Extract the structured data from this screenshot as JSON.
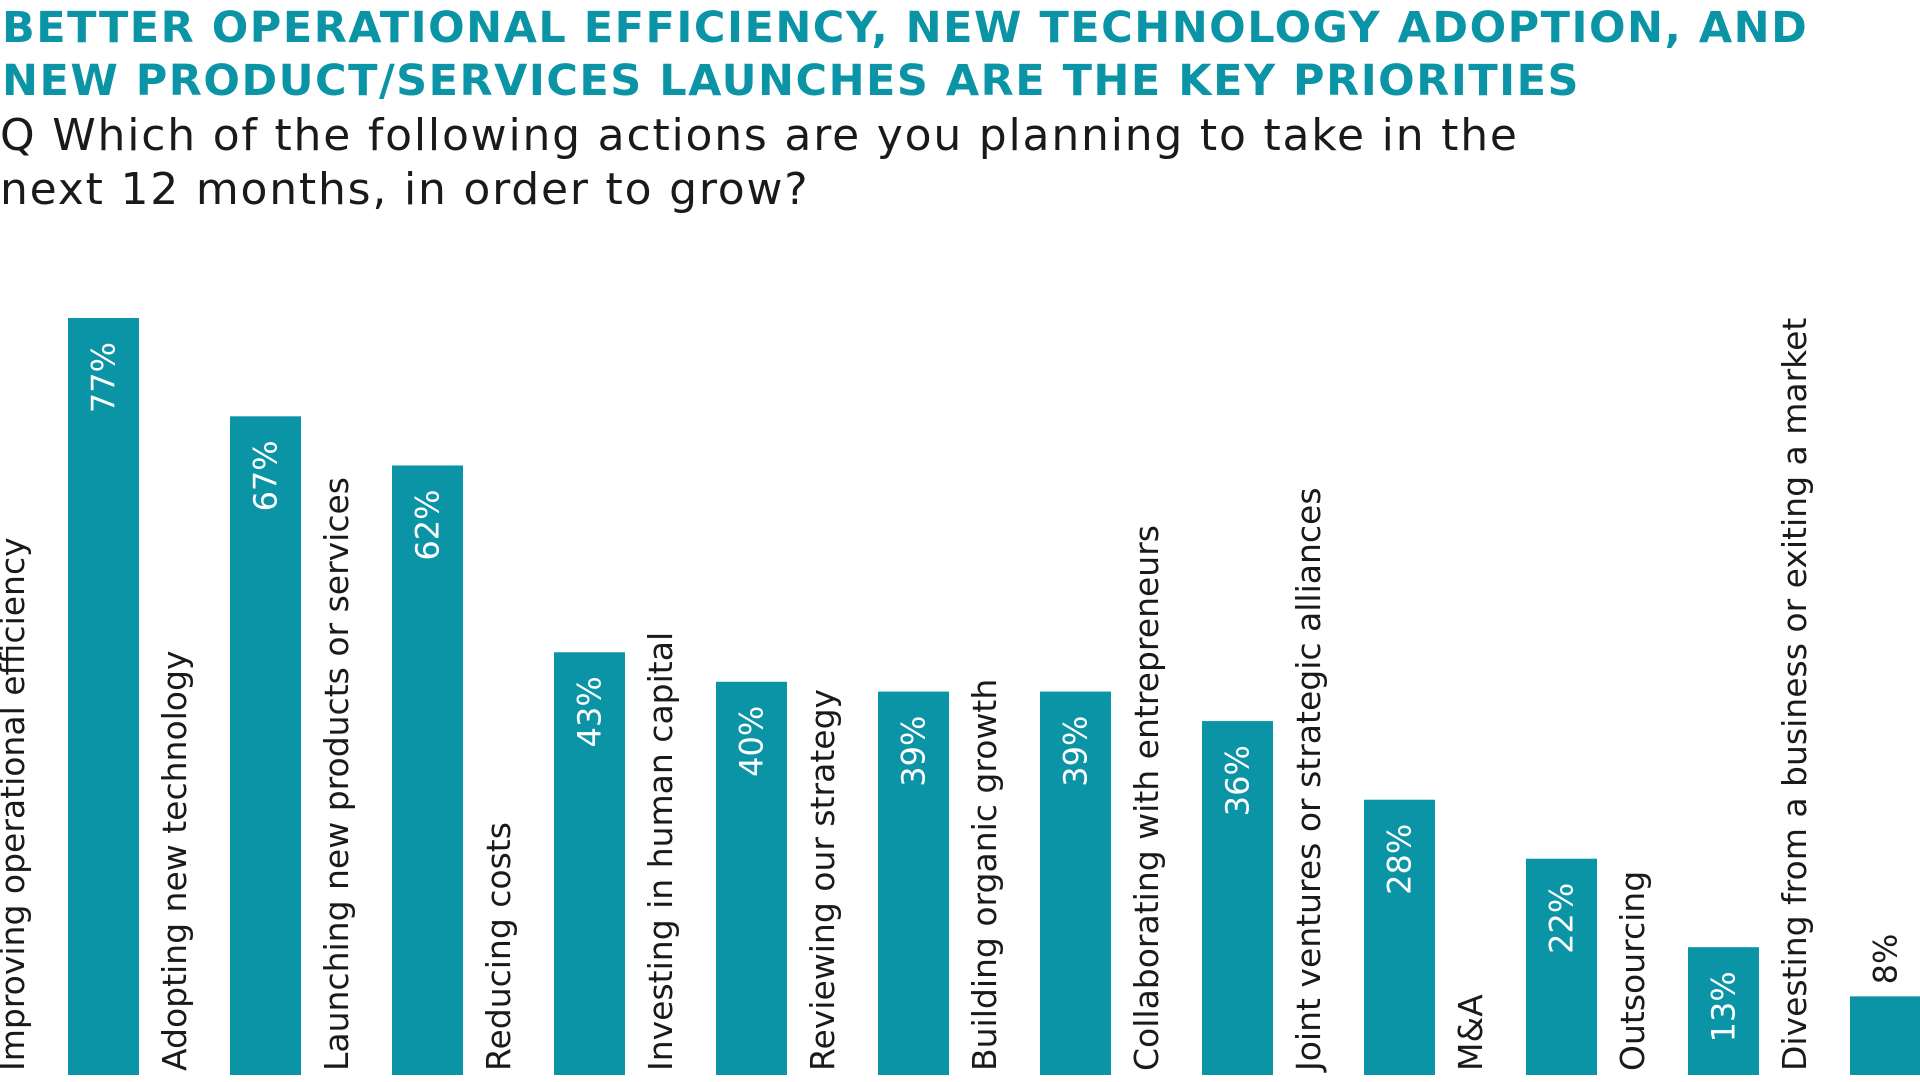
{
  "colors": {
    "accent": "#0a94a6",
    "text": "#1a1a1a",
    "value_text_inside": "#ffffff",
    "value_text_outside": "#1a1a1a"
  },
  "heading": {
    "title_line1": "BETTER OPERATIONAL EFFICIENCY, NEW TECHNOLOGY ADOPTION, AND",
    "title_line2": "NEW PRODUCT/SERVICES LAUNCHES ARE THE KEY PRIORITIES",
    "question_line1": "Q Which of the following actions are you planning to take in the",
    "question_line2": "next 12 months, in order to grow?"
  },
  "chart_data": {
    "type": "bar",
    "orientation": "vertical",
    "categories": [
      "Improving operational efficiency",
      "Adopting new technology",
      "Launching new products or services",
      "Reducing costs",
      "Investing in human capital",
      "Reviewing our strategy",
      "Building organic growth",
      "Collaborating with entrepreneurs",
      "Joint ventures or strategic alliances",
      "M&A",
      "Outsourcing",
      "Divesting from a business or exiting a market"
    ],
    "values": [
      77,
      67,
      62,
      43,
      40,
      39,
      39,
      36,
      28,
      22,
      13,
      8
    ],
    "value_labels": [
      "77%",
      "67%",
      "62%",
      "43%",
      "40%",
      "39%",
      "39%",
      "36%",
      "28%",
      "22%",
      "13%",
      "8%"
    ],
    "unit": "%",
    "ylim": [
      0,
      77
    ],
    "grid": false,
    "legend": "none"
  }
}
